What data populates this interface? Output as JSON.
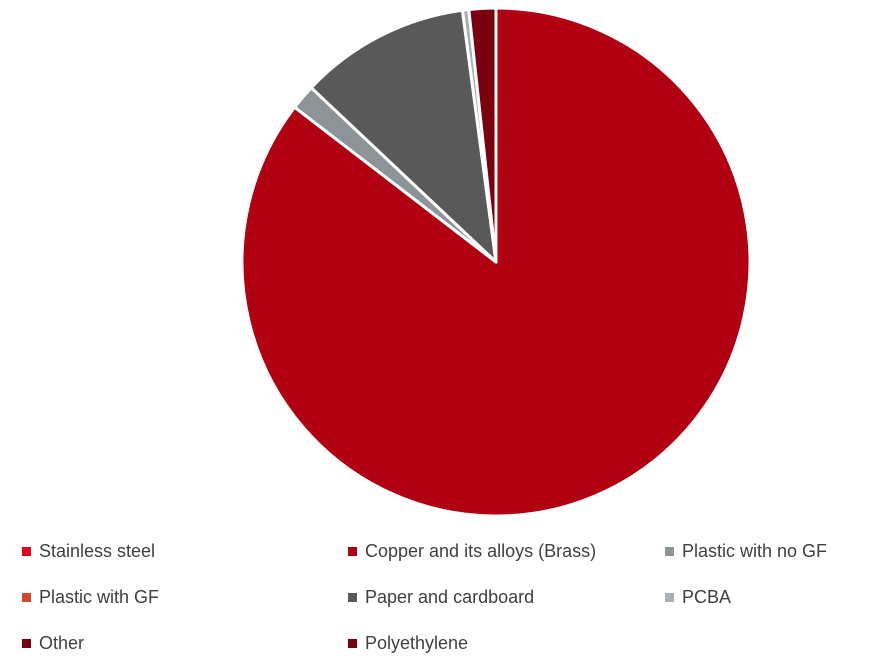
{
  "chart_data": {
    "type": "pie",
    "title": "",
    "legend_position": "bottom",
    "start_angle_deg": 0,
    "direction": "clockwise",
    "slices": [
      {
        "label": "Stainless steel",
        "value": 0.0,
        "color": "#E3001B"
      },
      {
        "label": "Copper and its alloys (Brass)",
        "value": 85.0,
        "color": "#B00012"
      },
      {
        "label": "Plastic with no GF",
        "value": 1.6,
        "color": "#8C9498"
      },
      {
        "label": "Plastic with GF",
        "value": 0.0,
        "color": "#D2492A"
      },
      {
        "label": "Paper and cardboard",
        "value": 10.8,
        "color": "#595959"
      },
      {
        "label": "PCBA",
        "value": 0.4,
        "color": "#A6B0B6"
      },
      {
        "label": "Other",
        "value": 0.0,
        "color": "#7A0010"
      },
      {
        "label": "Polyethylene",
        "value": 1.7,
        "color": "#7A0010"
      }
    ]
  }
}
